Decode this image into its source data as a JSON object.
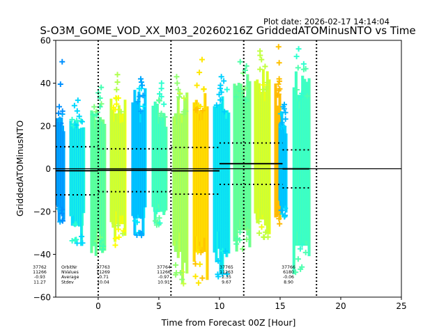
{
  "chart_data": {
    "type": "scatter",
    "title": "S-O3M_GOME_VOD_XX_M03_20260216Z GriddedATOMinusNTO vs Time",
    "plot_date": "Plot date: 2026-02-17 14:14:04",
    "xlabel": "Time from Forecast 00Z [Hour]",
    "ylabel": "GriddedATOMinusNTO",
    "xlim": [
      -3.5,
      25
    ],
    "ylim": [
      -60,
      60
    ],
    "xticks": [
      0,
      5,
      10,
      15,
      20,
      25
    ],
    "yticks": [
      -60,
      -40,
      -20,
      0,
      20,
      40,
      60
    ],
    "xtick_labels": [
      "0",
      "5",
      "10",
      "15",
      "20",
      "25"
    ],
    "ytick_labels": [
      "−60",
      "−40",
      "−20",
      "0",
      "20",
      "40",
      "60"
    ],
    "zero_line": 0,
    "orbit_boundaries": [
      0,
      6,
      12,
      18
    ],
    "stat_labels": [
      "OrbitNr",
      "NValues",
      "Average",
      "Stdev"
    ],
    "orbits": [
      {
        "orbit": "37762",
        "nvalues": "11266",
        "average": "-0.93",
        "stdev": "11.27",
        "x_start": -3.5,
        "x_end": 0,
        "mean": -0.93,
        "upper": 10.3,
        "lower": -12.2
      },
      {
        "orbit": "37763",
        "nvalues": "11269",
        "average": "-0.71",
        "stdev": "10.04",
        "x_start": 0,
        "x_end": 6,
        "mean": -0.71,
        "upper": 9.3,
        "lower": -10.75
      },
      {
        "orbit": "37764",
        "nvalues": "11266",
        "average": "-0.97",
        "stdev": "10.91",
        "x_start": 6,
        "x_end": 10.0,
        "mean": -0.97,
        "upper": 9.94,
        "lower": -11.88
      },
      {
        "orbit": "37765",
        "nvalues": "11263",
        "average": "2.35",
        "stdev": "9.67",
        "x_start": 10.0,
        "x_end": 15.2,
        "mean": 2.35,
        "upper": 12.02,
        "lower": -7.32
      },
      {
        "orbit": "37766",
        "nvalues": "6180",
        "average": "-0.06",
        "stdev": "8.90",
        "x_start": 15.2,
        "x_end": 17.4,
        "mean": -0.06,
        "upper": 8.84,
        "lower": -8.96
      }
    ],
    "clusters": [
      {
        "x": [
          -3.5,
          -2.75
        ],
        "y": [
          -25,
          28
        ],
        "y_out": [
          29,
          50
        ],
        "c1": "#0090ff",
        "c2": "#00b0ff"
      },
      {
        "x": [
          -2.35,
          -1.1
        ],
        "y": [
          -37,
          26
        ],
        "y_out": [
          27,
          32
        ],
        "c1": "#00d8ff",
        "c2": "#30ffd0"
      },
      {
        "x": [
          -0.63,
          0.63
        ],
        "y": [
          -42,
          32
        ],
        "y_out": [
          33,
          38
        ],
        "c1": "#40ffb0",
        "c2": "#80ff80"
      },
      {
        "x": [
          0.98,
          2.3
        ],
        "y": [
          -36,
          36
        ],
        "y_out": [
          37,
          44
        ],
        "c1": "#b0ff50",
        "c2": "#ffff00"
      },
      {
        "x": [
          2.76,
          3.97
        ],
        "y": [
          -32,
          38
        ],
        "y_out": [
          39,
          42
        ],
        "c1": "#00a8ff",
        "c2": "#00e8ff"
      },
      {
        "x": [
          4.43,
          5.69
        ],
        "y": [
          -28,
          34
        ],
        "y_out": [
          35,
          40
        ],
        "c1": "#30ffd0",
        "c2": "#60ffa0"
      },
      {
        "x": [
          6.15,
          7.41
        ],
        "y": [
          -54,
          36
        ],
        "y_out": [
          37,
          43
        ],
        "c1": "#90ff70",
        "c2": "#c8ff40"
      },
      {
        "x": [
          7.82,
          9.08
        ],
        "y": [
          -54,
          38
        ],
        "y_out": [
          39,
          51
        ],
        "c1": "#ffe800",
        "c2": "#ffc000"
      },
      {
        "x": [
          9.49,
          10.86
        ],
        "y": [
          -52,
          38
        ],
        "y_out": [
          39,
          43
        ],
        "c1": "#00d0ff",
        "c2": "#20ffe0"
      },
      {
        "x": [
          11.15,
          12.59
        ],
        "y": [
          -40,
          45
        ],
        "y_out": [
          46,
          50
        ],
        "c1": "#50ffa8",
        "c2": "#80ff80"
      },
      {
        "x": [
          12.87,
          14.2
        ],
        "y": [
          -33,
          50
        ],
        "y_out": [
          51,
          55
        ],
        "c1": "#c0ff40",
        "c2": "#f0ff10"
      },
      {
        "x": [
          14.54,
          15.06
        ],
        "y": [
          -26,
          41
        ],
        "y_out": [
          42,
          57
        ],
        "c1": "#ffc000",
        "c2": "#ffb800"
      },
      {
        "x": [
          14.89,
          15.58
        ],
        "y": [
          -24,
          27
        ],
        "y_out": [
          28,
          30
        ],
        "c1": "#00b8ff",
        "c2": "#00d8ff"
      },
      {
        "x": [
          16.05,
          17.48
        ],
        "y": [
          -50,
          48
        ],
        "y_out": [
          49,
          56
        ],
        "c1": "#30ffd0",
        "c2": "#50ffb0"
      }
    ]
  }
}
